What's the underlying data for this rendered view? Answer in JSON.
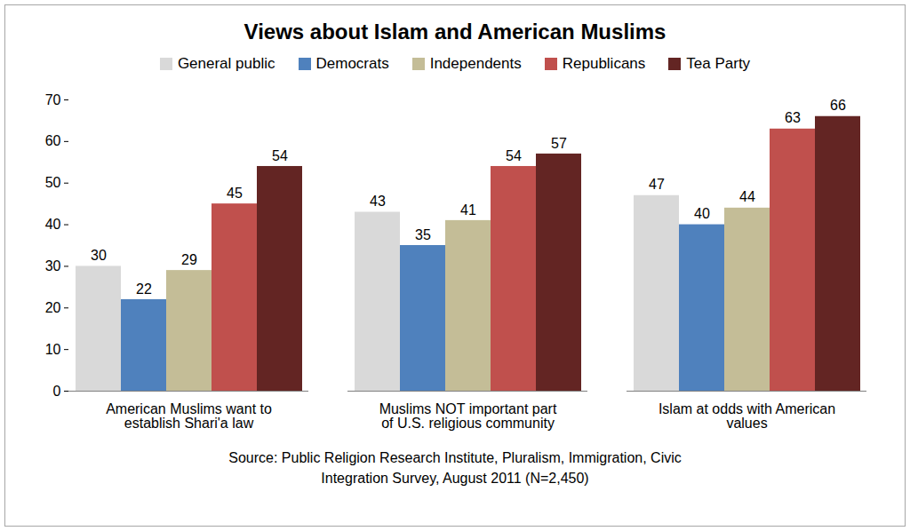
{
  "chart_data": {
    "type": "bar",
    "title": "Views about Islam and American Muslims",
    "caption": "Source: Public Religion Research Institute, Pluralism, Immigration, Civic\nIntegration Survey, August 2011  (N=2,450)",
    "categories": [
      "American Muslims want to\nestablish Shari'a law",
      "Muslims NOT important part\nof U.S. religious community",
      "Islam at odds with American\nvalues"
    ],
    "series": [
      {
        "name": "General public",
        "color": "#d9d9d9",
        "values": [
          30,
          43,
          47
        ]
      },
      {
        "name": "Democrats",
        "color": "#4f81bd",
        "values": [
          22,
          35,
          40
        ]
      },
      {
        "name": "Independents",
        "color": "#c4bd97",
        "values": [
          29,
          41,
          44
        ]
      },
      {
        "name": "Republicans",
        "color": "#c0504d",
        "values": [
          45,
          54,
          63
        ]
      },
      {
        "name": "Tea Party",
        "color": "#632523",
        "values": [
          54,
          57,
          66
        ]
      }
    ],
    "ylim": [
      0,
      70
    ],
    "yticks": [
      0,
      10,
      20,
      30,
      40,
      50,
      60,
      70
    ],
    "grid": false,
    "legend": "top",
    "data_labels": true
  }
}
